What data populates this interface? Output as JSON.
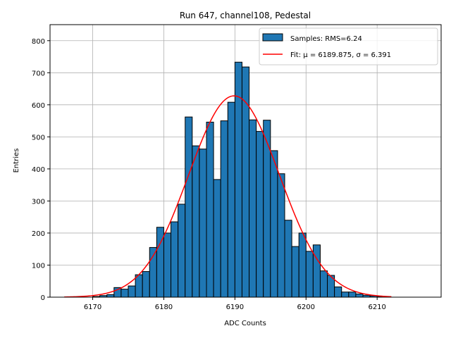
{
  "chart_data": {
    "type": "bar",
    "title": "Run 647, channel108, Pedestal",
    "xlabel": "ADC Counts",
    "ylabel": "Entries",
    "xlim": [
      6164,
      6219
    ],
    "ylim": [
      0,
      850
    ],
    "xticks": [
      6170,
      6180,
      6190,
      6200,
      6210
    ],
    "yticks": [
      0,
      100,
      200,
      300,
      400,
      500,
      600,
      700,
      800
    ],
    "grid": true,
    "legend_position": "top-right",
    "histogram": {
      "name": "Samples: RMS=6.24",
      "bin_width": 1,
      "bin_starts": [
        6170,
        6171,
        6172,
        6173,
        6174,
        6175,
        6176,
        6177,
        6178,
        6179,
        6180,
        6181,
        6182,
        6183,
        6184,
        6185,
        6186,
        6187,
        6188,
        6189,
        6190,
        6191,
        6192,
        6193,
        6194,
        6195,
        6196,
        6197,
        6198,
        6199,
        6200,
        6201,
        6202,
        6203,
        6204,
        6205,
        6206,
        6207,
        6208,
        6209,
        6210
      ],
      "values": [
        2,
        5,
        8,
        30,
        25,
        35,
        70,
        80,
        155,
        218,
        200,
        235,
        290,
        562,
        472,
        462,
        546,
        367,
        550,
        608,
        733,
        718,
        553,
        517,
        552,
        457,
        385,
        240,
        158,
        200,
        143,
        163,
        82,
        68,
        32,
        16,
        16,
        10,
        6,
        4,
        2
      ],
      "color": "#1f77b4"
    },
    "fit": {
      "name": "Fit: μ = 6189.875, σ = 6.391",
      "mu": 6189.875,
      "sigma": 6.391,
      "amplitude": 628,
      "x_range": [
        6166,
        6212
      ],
      "color": "#ff0000"
    }
  }
}
